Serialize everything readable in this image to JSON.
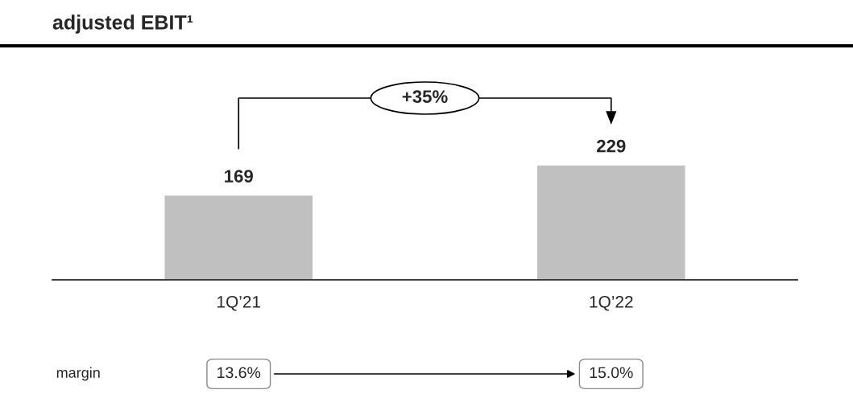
{
  "chart_data": {
    "type": "bar",
    "title": "adjusted EBIT¹",
    "categories": [
      "1Q’21",
      "1Q’22"
    ],
    "values": [
      169,
      229
    ],
    "color": "#c0c0c0",
    "data_labels": true,
    "annotations": [
      "+35%",
      "margin",
      "13.6%",
      "15.0%"
    ]
  }
}
